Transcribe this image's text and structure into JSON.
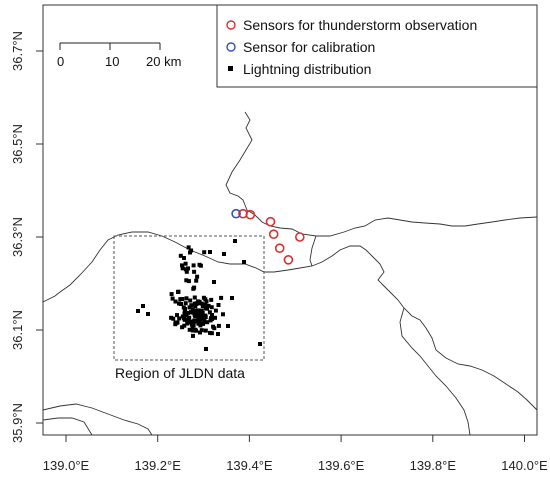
{
  "map": {
    "x_ticks": [
      "139.0°E",
      "139.2°E",
      "139.4°E",
      "139.6°E",
      "139.8°E",
      "140.0°E"
    ],
    "y_ticks": [
      "35.9°N",
      "36.1°N",
      "36.3°N",
      "36.5°N",
      "36.7°N"
    ],
    "scale_bar": {
      "labels": [
        "0",
        "10",
        "20 km"
      ]
    },
    "legend": [
      {
        "label": "Sensors for thunderstorm observation",
        "color": "#d93030",
        "marker": "open-circle"
      },
      {
        "label": "Sensor for calibration",
        "color": "#3050c0",
        "marker": "open-circle"
      },
      {
        "label": "Lightning distribution",
        "color": "#000000",
        "marker": "filled-square"
      }
    ],
    "region_label": "Region of JLDN data",
    "sensors_thunderstorm": [
      {
        "lon": 139.386,
        "lat": 36.35
      },
      {
        "lon": 139.402,
        "lat": 36.348
      },
      {
        "lon": 139.446,
        "lat": 36.333
      },
      {
        "lon": 139.453,
        "lat": 36.306
      },
      {
        "lon": 139.466,
        "lat": 36.276
      },
      {
        "lon": 139.51,
        "lat": 36.3
      },
      {
        "lon": 139.485,
        "lat": 36.251
      }
    ],
    "sensor_calibration": [
      {
        "lon": 139.371,
        "lat": 36.35
      }
    ]
  }
}
